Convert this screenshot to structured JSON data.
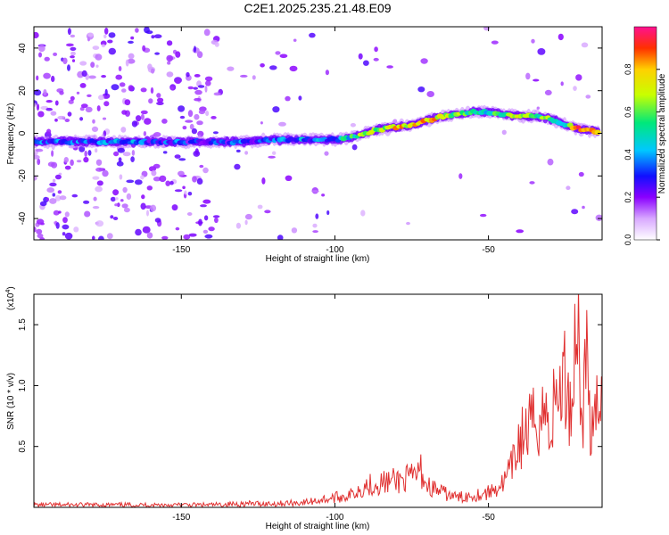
{
  "title": "C2E1.2025.235.21.48.E09",
  "colors": {
    "snr_line": "#e03030",
    "axis": "#000000"
  },
  "chart_data": [
    {
      "type": "heatmap",
      "name": "spectrogram",
      "xlabel": "Height of straight line (km)",
      "ylabel": "Frequency (Hz)",
      "xlim": [
        -198,
        -13
      ],
      "ylim": [
        -50,
        50
      ],
      "xticks": [
        -150,
        -100,
        -50
      ],
      "yticks": [
        -40,
        -20,
        0,
        20,
        40
      ],
      "colorbar": {
        "label": "Normalized spectral amplitude",
        "range": [
          0,
          1
        ],
        "ticks": [
          0.0,
          0.2,
          0.4,
          0.6,
          0.8
        ]
      },
      "ridge_x": [
        -198,
        -190,
        -180,
        -170,
        -160,
        -150,
        -140,
        -130,
        -120,
        -110,
        -100,
        -95,
        -90,
        -85,
        -80,
        -75,
        -70,
        -65,
        -60,
        -55,
        -50,
        -45,
        -40,
        -35,
        -30,
        -25,
        -20,
        -15
      ],
      "ridge_frequency": [
        -4,
        -4,
        -4,
        -4,
        -4,
        -4,
        -4,
        -4,
        -3,
        -3,
        -3,
        -2,
        0,
        2,
        3,
        4,
        6,
        8,
        9,
        10,
        10,
        9,
        8,
        8,
        7,
        4,
        2,
        1
      ],
      "ridge_amplitude": [
        0.35,
        0.35,
        0.3,
        0.35,
        0.3,
        0.3,
        0.25,
        0.3,
        0.35,
        0.35,
        0.4,
        0.5,
        0.7,
        0.6,
        0.8,
        0.7,
        0.8,
        0.7,
        0.6,
        0.5,
        0.5,
        0.6,
        0.7,
        0.6,
        0.6,
        0.5,
        0.9,
        0.7
      ]
    },
    {
      "type": "line",
      "name": "snr",
      "xlabel": "Height of straight line (km)",
      "ylabel": "SNR (10 * v/v)",
      "y_multiplier": "(x10",
      "y_multiplier_exp": "4",
      "y_multiplier_close": ")",
      "xlim": [
        -198,
        -13
      ],
      "ylim": [
        0,
        1.75
      ],
      "xticks": [
        -150,
        -100,
        -50
      ],
      "yticks": [
        0.5,
        1.0,
        1.5
      ],
      "ytick_labels": [
        "0.5",
        "1.0",
        "1.5"
      ],
      "series": [
        {
          "name": "SNR",
          "x": [
            -198,
            -190,
            -180,
            -170,
            -160,
            -150,
            -140,
            -130,
            -120,
            -110,
            -105,
            -100,
            -95,
            -90,
            -85,
            -80,
            -75,
            -72,
            -70,
            -65,
            -60,
            -55,
            -50,
            -45,
            -42,
            -40,
            -38,
            -35,
            -32,
            -30,
            -28,
            -25,
            -23,
            -21,
            -20,
            -18,
            -16,
            -14,
            -13
          ],
          "values": [
            0.02,
            0.02,
            0.02,
            0.02,
            0.02,
            0.02,
            0.02,
            0.03,
            0.03,
            0.04,
            0.06,
            0.08,
            0.1,
            0.18,
            0.2,
            0.22,
            0.24,
            0.3,
            0.18,
            0.12,
            0.08,
            0.1,
            0.12,
            0.2,
            0.35,
            0.55,
            0.6,
            0.7,
            0.8,
            0.65,
            0.9,
            1.05,
            0.8,
            1.75,
            0.7,
            1.2,
            0.5,
            0.95,
            0.85
          ]
        }
      ]
    }
  ]
}
